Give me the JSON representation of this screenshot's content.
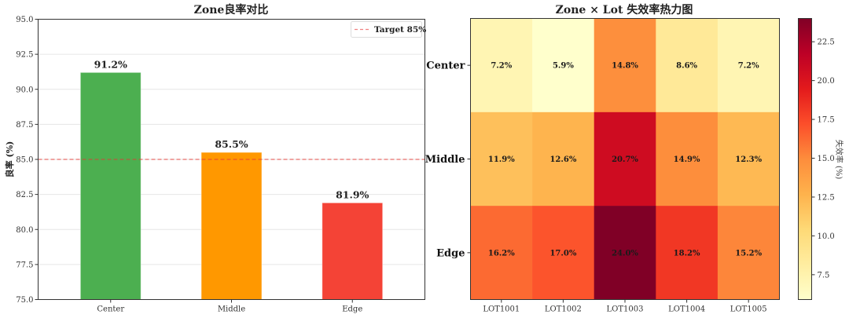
{
  "chart_data": [
    {
      "type": "bar",
      "title": "Zone良率对比",
      "xlabel": "",
      "ylabel": "良率 (%)",
      "categories": [
        "Center",
        "Middle",
        "Edge"
      ],
      "values": [
        91.2,
        85.5,
        81.9
      ],
      "value_labels": [
        "91.2%",
        "85.5%",
        "81.9%"
      ],
      "colors": [
        "#4caf50",
        "#ff9800",
        "#f44336"
      ],
      "ylim": [
        75.0,
        95.0
      ],
      "yticks": [
        75.0,
        77.5,
        80.0,
        82.5,
        85.0,
        87.5,
        90.0,
        92.5,
        95.0
      ],
      "ytick_labels": [
        "75.0",
        "77.5",
        "80.0",
        "82.5",
        "85.0",
        "87.5",
        "90.0",
        "92.5",
        "95.0"
      ],
      "grid": "y",
      "reference_line": {
        "value": 85,
        "label": "Target 85%",
        "color": "#e53935",
        "style": "dashed"
      },
      "legend": {
        "position": "top-right",
        "entries": [
          "Target 85%"
        ]
      }
    },
    {
      "type": "heatmap",
      "title": "Zone × Lot 失效率热力图",
      "rows": [
        "Center",
        "Middle",
        "Edge"
      ],
      "columns": [
        "LOT1001",
        "LOT1002",
        "LOT1003",
        "LOT1004",
        "LOT1005"
      ],
      "values": [
        [
          7.2,
          5.9,
          14.8,
          8.6,
          7.2
        ],
        [
          11.9,
          12.6,
          20.7,
          14.9,
          12.3
        ],
        [
          16.2,
          17.0,
          24.0,
          18.2,
          15.2
        ]
      ],
      "cell_labels": [
        [
          "7.2%",
          "5.9%",
          "14.8%",
          "8.6%",
          "7.2%"
        ],
        [
          "11.9%",
          "12.6%",
          "20.7%",
          "14.9%",
          "12.3%"
        ],
        [
          "16.2%",
          "17.0%",
          "24.0%",
          "18.2%",
          "15.2%"
        ]
      ],
      "colormap": "YlOrRd",
      "colorbar": {
        "label": "失效率 (%)",
        "range": [
          5.9,
          24.0
        ],
        "ticks": [
          7.5,
          10.0,
          12.5,
          15.0,
          17.5,
          20.0,
          22.5
        ],
        "tick_labels": [
          "7.5",
          "10.0",
          "12.5",
          "15.0",
          "17.5",
          "20.0",
          "22.5"
        ]
      }
    }
  ]
}
